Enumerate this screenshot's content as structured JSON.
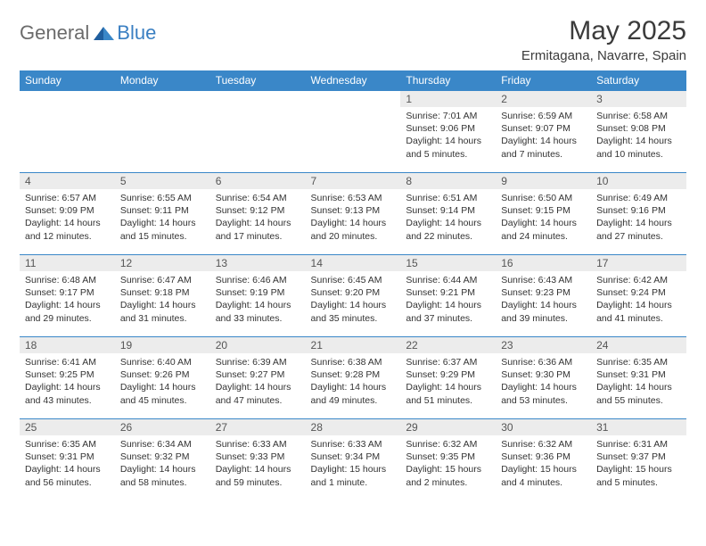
{
  "logo": {
    "general": "General",
    "blue": "Blue"
  },
  "title": "May 2025",
  "subtitle": "Ermitagana, Navarre, Spain",
  "header_bg": "#3a87c8",
  "days_of_week": [
    "Sunday",
    "Monday",
    "Tuesday",
    "Wednesday",
    "Thursday",
    "Friday",
    "Saturday"
  ],
  "weeks": [
    [
      null,
      null,
      null,
      null,
      {
        "n": "1",
        "sr": "7:01 AM",
        "ss": "9:06 PM",
        "dl": "14 hours and 5 minutes."
      },
      {
        "n": "2",
        "sr": "6:59 AM",
        "ss": "9:07 PM",
        "dl": "14 hours and 7 minutes."
      },
      {
        "n": "3",
        "sr": "6:58 AM",
        "ss": "9:08 PM",
        "dl": "14 hours and 10 minutes."
      }
    ],
    [
      {
        "n": "4",
        "sr": "6:57 AM",
        "ss": "9:09 PM",
        "dl": "14 hours and 12 minutes."
      },
      {
        "n": "5",
        "sr": "6:55 AM",
        "ss": "9:11 PM",
        "dl": "14 hours and 15 minutes."
      },
      {
        "n": "6",
        "sr": "6:54 AM",
        "ss": "9:12 PM",
        "dl": "14 hours and 17 minutes."
      },
      {
        "n": "7",
        "sr": "6:53 AM",
        "ss": "9:13 PM",
        "dl": "14 hours and 20 minutes."
      },
      {
        "n": "8",
        "sr": "6:51 AM",
        "ss": "9:14 PM",
        "dl": "14 hours and 22 minutes."
      },
      {
        "n": "9",
        "sr": "6:50 AM",
        "ss": "9:15 PM",
        "dl": "14 hours and 24 minutes."
      },
      {
        "n": "10",
        "sr": "6:49 AM",
        "ss": "9:16 PM",
        "dl": "14 hours and 27 minutes."
      }
    ],
    [
      {
        "n": "11",
        "sr": "6:48 AM",
        "ss": "9:17 PM",
        "dl": "14 hours and 29 minutes."
      },
      {
        "n": "12",
        "sr": "6:47 AM",
        "ss": "9:18 PM",
        "dl": "14 hours and 31 minutes."
      },
      {
        "n": "13",
        "sr": "6:46 AM",
        "ss": "9:19 PM",
        "dl": "14 hours and 33 minutes."
      },
      {
        "n": "14",
        "sr": "6:45 AM",
        "ss": "9:20 PM",
        "dl": "14 hours and 35 minutes."
      },
      {
        "n": "15",
        "sr": "6:44 AM",
        "ss": "9:21 PM",
        "dl": "14 hours and 37 minutes."
      },
      {
        "n": "16",
        "sr": "6:43 AM",
        "ss": "9:23 PM",
        "dl": "14 hours and 39 minutes."
      },
      {
        "n": "17",
        "sr": "6:42 AM",
        "ss": "9:24 PM",
        "dl": "14 hours and 41 minutes."
      }
    ],
    [
      {
        "n": "18",
        "sr": "6:41 AM",
        "ss": "9:25 PM",
        "dl": "14 hours and 43 minutes."
      },
      {
        "n": "19",
        "sr": "6:40 AM",
        "ss": "9:26 PM",
        "dl": "14 hours and 45 minutes."
      },
      {
        "n": "20",
        "sr": "6:39 AM",
        "ss": "9:27 PM",
        "dl": "14 hours and 47 minutes."
      },
      {
        "n": "21",
        "sr": "6:38 AM",
        "ss": "9:28 PM",
        "dl": "14 hours and 49 minutes."
      },
      {
        "n": "22",
        "sr": "6:37 AM",
        "ss": "9:29 PM",
        "dl": "14 hours and 51 minutes."
      },
      {
        "n": "23",
        "sr": "6:36 AM",
        "ss": "9:30 PM",
        "dl": "14 hours and 53 minutes."
      },
      {
        "n": "24",
        "sr": "6:35 AM",
        "ss": "9:31 PM",
        "dl": "14 hours and 55 minutes."
      }
    ],
    [
      {
        "n": "25",
        "sr": "6:35 AM",
        "ss": "9:31 PM",
        "dl": "14 hours and 56 minutes."
      },
      {
        "n": "26",
        "sr": "6:34 AM",
        "ss": "9:32 PM",
        "dl": "14 hours and 58 minutes."
      },
      {
        "n": "27",
        "sr": "6:33 AM",
        "ss": "9:33 PM",
        "dl": "14 hours and 59 minutes."
      },
      {
        "n": "28",
        "sr": "6:33 AM",
        "ss": "9:34 PM",
        "dl": "15 hours and 1 minute."
      },
      {
        "n": "29",
        "sr": "6:32 AM",
        "ss": "9:35 PM",
        "dl": "15 hours and 2 minutes."
      },
      {
        "n": "30",
        "sr": "6:32 AM",
        "ss": "9:36 PM",
        "dl": "15 hours and 4 minutes."
      },
      {
        "n": "31",
        "sr": "6:31 AM",
        "ss": "9:37 PM",
        "dl": "15 hours and 5 minutes."
      }
    ]
  ],
  "labels": {
    "sunrise": "Sunrise:",
    "sunset": "Sunset:",
    "daylight": "Daylight:"
  }
}
